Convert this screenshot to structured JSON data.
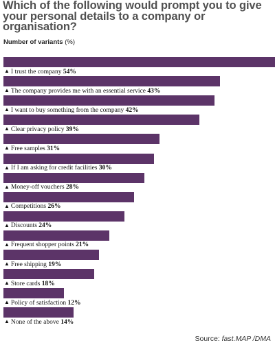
{
  "title": "Which of the following would prompt you to give your personal details to a company or organisation?",
  "subtitle": "Number of variants",
  "unit": "(%)",
  "source": {
    "prefix": "Source:",
    "name": "fast.MAP /DMA"
  },
  "colors": {
    "bar": "#5c3468",
    "title": "#505050"
  },
  "chart_data": {
    "type": "bar",
    "orientation": "horizontal",
    "categories": [
      "I trust the company",
      "The company provides me with an essential service",
      "I want to buy something from the company",
      "Clear privacy policy",
      "Free samples",
      "If I am asking for credit facilities",
      "Money-off vouchers",
      "Competitions",
      "Discounts",
      "Frequent shopper points",
      "Free shipping",
      "Store cards",
      "Policy of satisfaction",
      "None of the above"
    ],
    "values": [
      54,
      43,
      42,
      39,
      31,
      30,
      28,
      26,
      24,
      21,
      19,
      18,
      12,
      14
    ],
    "value_labels": [
      "54%",
      "43%",
      "42%",
      "39%",
      "31%",
      "30%",
      "28%",
      "26%",
      "24%",
      "21%",
      "19%",
      "18%",
      "12%",
      "14%"
    ],
    "ylabel": "Number of variants",
    "unit": "%",
    "xlim": [
      0,
      54
    ],
    "grid": false,
    "legend": "none"
  }
}
